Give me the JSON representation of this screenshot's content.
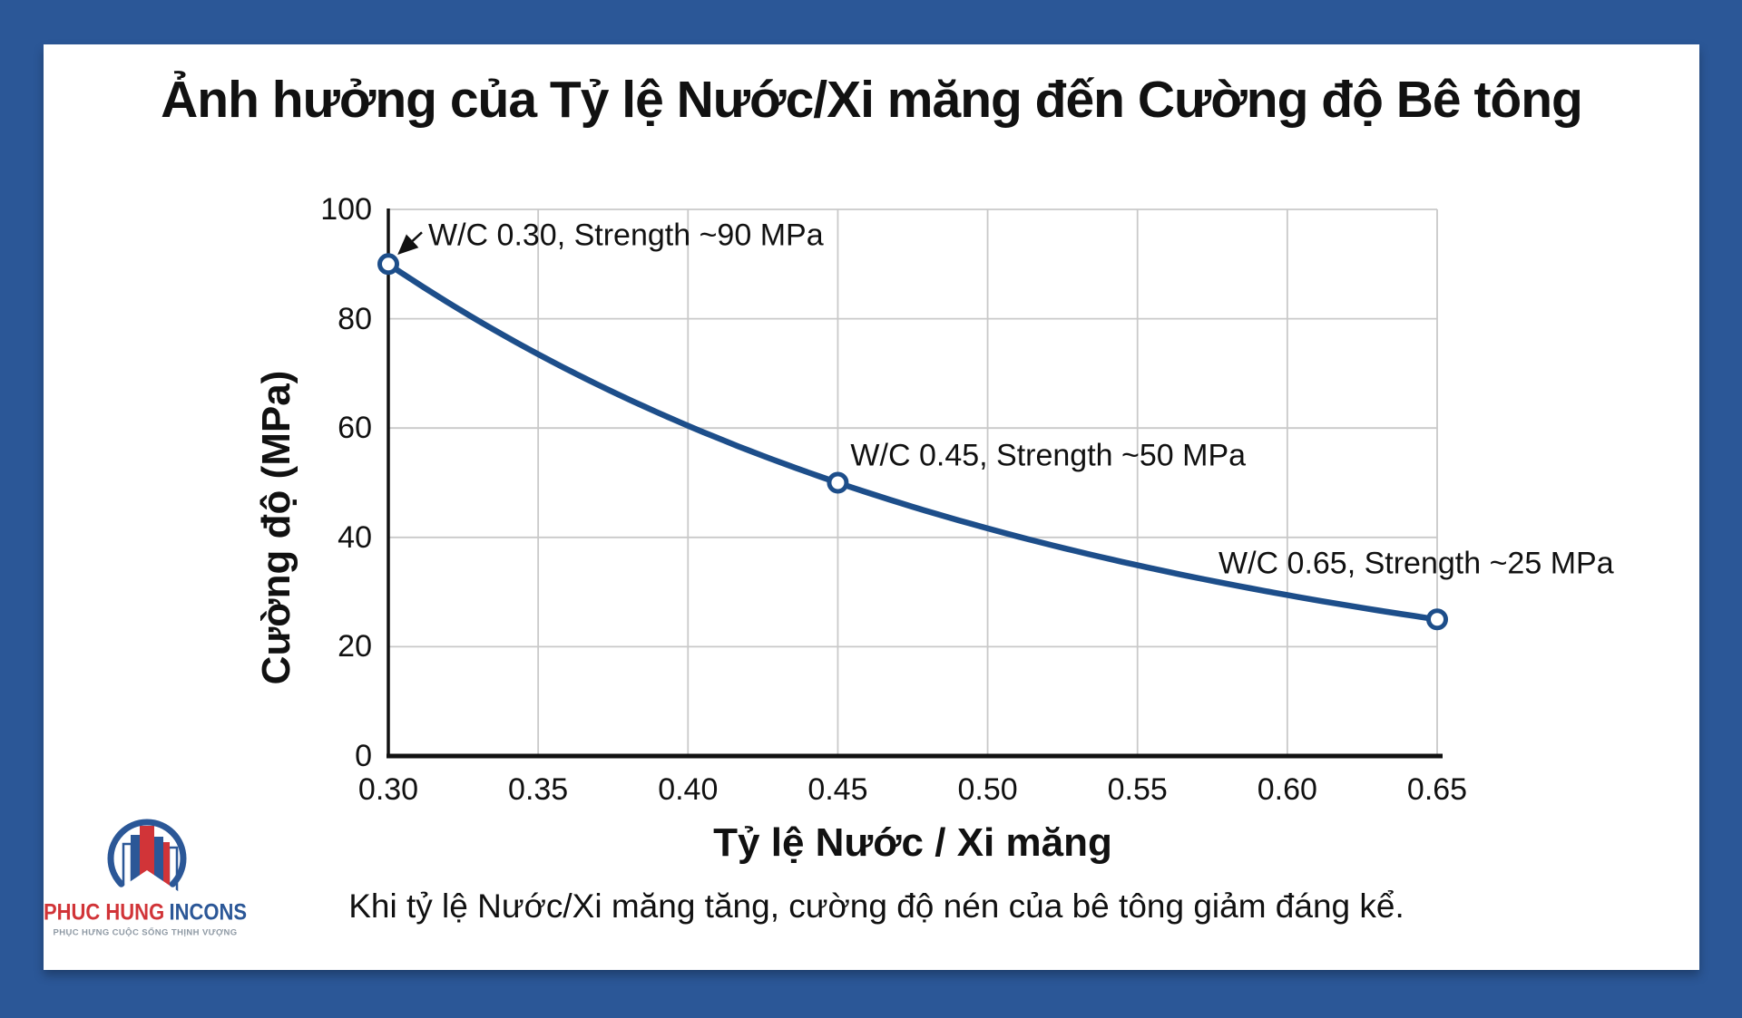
{
  "frame": {
    "background": "#2b5797",
    "panel_background": "#ffffff"
  },
  "chart_data": {
    "type": "line",
    "title": "Ảnh hưởng của Tỷ lệ Nước/Xi măng đến Cường độ Bê tông",
    "xlabel": "Tỷ lệ Nước / Xi măng",
    "ylabel": "Cường độ (MPa)",
    "x": [
      0.3,
      0.45,
      0.65
    ],
    "y": [
      90,
      50,
      25
    ],
    "xlim": [
      0.3,
      0.65
    ],
    "ylim": [
      0,
      100
    ],
    "x_tick_labels": [
      "0.30",
      "0.35",
      "0.40",
      "0.45",
      "0.50",
      "0.55",
      "0.60",
      "0.65"
    ],
    "x_tick_values": [
      0.3,
      0.35,
      0.4,
      0.45,
      0.5,
      0.55,
      0.6,
      0.65
    ],
    "y_tick_labels": [
      "0",
      "20",
      "40",
      "60",
      "80",
      "100"
    ],
    "y_tick_values": [
      0,
      20,
      40,
      60,
      80,
      100
    ],
    "grid": true,
    "legend": "none",
    "line_color": "#1d4e8a",
    "marker": "open-circle",
    "marker_fill": "#ffffff",
    "grid_color": "#c9c9c9",
    "spine_color": "#111111",
    "annotations": [
      {
        "text": "W/C 0.30, Strength ~90 MPa",
        "x": 0.3,
        "y": 90,
        "arrow": true
      },
      {
        "text": "W/C 0.45, Strength ~50 MPa",
        "x": 0.45,
        "y": 50,
        "arrow": false
      },
      {
        "text": "W/C 0.65, Strength ~25 MPa",
        "x": 0.65,
        "y": 25,
        "arrow": false
      }
    ]
  },
  "caption": "Khi tỷ lệ Nước/Xi măng tăng, cường độ nén của bê tông giảm đáng kể.",
  "logo": {
    "name_primary": "PHUC HUNG",
    "name_secondary": "INCONS",
    "tagline": "PHỤC HƯNG CUỘC SỐNG THỊNH VƯỢNG",
    "red": "#d13438",
    "navy": "#2b5797",
    "tagline_color": "#8e99a4"
  }
}
